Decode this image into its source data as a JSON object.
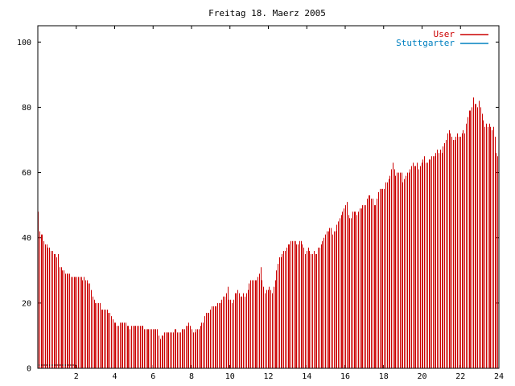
{
  "chart_data": {
    "type": "bar",
    "title": "Freitag 18. Maerz 2005",
    "xlabel": "",
    "ylabel": "",
    "xlim": [
      0,
      24
    ],
    "ylim": [
      0,
      105
    ],
    "x_ticks": [
      2,
      4,
      6,
      8,
      10,
      12,
      14,
      16,
      18,
      20,
      22,
      24
    ],
    "x_tick_labels": [
      "2",
      "4",
      "6",
      "8",
      "10",
      "12",
      "14",
      "16",
      "18",
      "20",
      "22",
      "24"
    ],
    "y_ticks": [
      0,
      20,
      40,
      60,
      80,
      100
    ],
    "y_tick_labels": [
      "0",
      "20",
      "40",
      "60",
      "80",
      "100"
    ],
    "grid": false,
    "legend_position": "top-right",
    "series": [
      {
        "name": "User",
        "color": "#cc0000",
        "step_hours": 0.0833,
        "values": [
          48,
          42,
          41,
          41,
          39,
          38,
          38,
          37,
          37,
          36,
          36,
          35,
          35,
          34,
          35,
          31,
          31,
          30,
          30,
          29,
          29,
          29,
          29,
          28,
          28,
          28,
          28,
          28,
          28,
          28,
          28,
          27,
          28,
          27,
          27,
          26,
          26,
          24,
          22,
          21,
          20,
          20,
          20,
          20,
          18,
          18,
          18,
          18,
          18,
          17,
          17,
          16,
          15,
          14,
          14,
          13,
          13,
          14,
          14,
          14,
          14,
          14,
          13,
          13,
          12,
          13,
          13,
          13,
          13,
          13,
          13,
          13,
          13,
          13,
          12,
          12,
          12,
          12,
          12,
          12,
          12,
          12,
          12,
          12,
          10,
          9,
          10,
          10,
          11,
          11,
          11,
          11,
          11,
          11,
          11,
          12,
          12,
          11,
          11,
          11,
          12,
          12,
          12,
          13,
          13,
          14,
          13,
          12,
          11,
          11,
          12,
          12,
          12,
          13,
          14,
          14,
          16,
          17,
          17,
          17,
          18,
          19,
          19,
          19,
          19,
          20,
          20,
          20,
          21,
          22,
          22,
          23,
          25,
          21,
          21,
          20,
          21,
          23,
          23,
          24,
          23,
          22,
          22,
          23,
          22,
          23,
          24,
          26,
          27,
          27,
          27,
          27,
          27,
          28,
          29,
          31,
          27,
          25,
          23,
          24,
          24,
          25,
          24,
          23,
          25,
          27,
          30,
          32,
          34,
          34,
          35,
          36,
          36,
          37,
          38,
          38,
          39,
          39,
          39,
          39,
          38,
          38,
          39,
          39,
          38,
          37,
          35,
          36,
          37,
          36,
          35,
          35,
          36,
          35,
          35,
          37,
          37,
          38,
          39,
          40,
          41,
          42,
          42,
          43,
          43,
          41,
          42,
          42,
          44,
          45,
          46,
          47,
          48,
          49,
          50,
          51,
          47,
          46,
          46,
          48,
          48,
          48,
          47,
          48,
          49,
          49,
          50,
          50,
          50,
          52,
          53,
          53,
          52,
          52,
          50,
          50,
          52,
          54,
          55,
          55,
          55,
          55,
          57,
          57,
          58,
          59,
          61,
          63,
          61,
          59,
          60,
          60,
          60,
          60,
          57,
          58,
          59,
          60,
          60,
          61,
          62,
          63,
          62,
          62,
          63,
          61,
          62,
          63,
          64,
          65,
          63,
          63,
          64,
          64,
          65,
          65,
          65,
          66,
          67,
          66,
          67,
          66,
          68,
          69,
          70,
          72,
          73,
          72,
          71,
          70,
          70,
          71,
          72,
          71,
          71,
          72,
          73,
          72,
          75,
          77,
          79,
          79,
          80,
          83,
          81,
          81,
          80,
          82,
          80,
          78,
          76,
          74,
          75,
          74,
          75,
          74,
          73,
          74,
          71,
          66,
          65
        ]
      },
      {
        "name": "Stuttgarter",
        "color": "#0080c0",
        "x_range": [
          0,
          2
        ],
        "value": 1
      }
    ]
  }
}
